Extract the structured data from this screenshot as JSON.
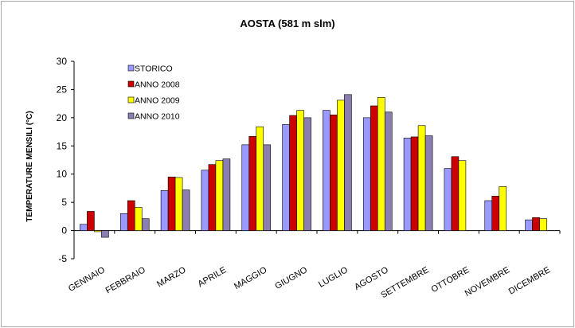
{
  "chart_data": {
    "type": "bar",
    "title": "AOSTA (581 m slm)",
    "ylabel": "TEMPERATURE MENSILI (°C)",
    "xlabel": "",
    "ylim": [
      -5,
      30
    ],
    "yticks": [
      -5,
      0,
      5,
      10,
      15,
      20,
      25,
      30
    ],
    "grid": false,
    "legend_position": "top-left",
    "categories": [
      "GENNAIO",
      "FEBBRAIO",
      "MARZO",
      "APRILE",
      "MAGGIO",
      "GIUGNO",
      "LUGLIO",
      "AGOSTO",
      "SETTEMBRE",
      "OTTOBRE",
      "NOVEMBRE",
      "DICEMBRE"
    ],
    "series": [
      {
        "name": "STORICO",
        "color": "#9999ff",
        "values": [
          1.1,
          3.0,
          7.1,
          10.7,
          15.2,
          18.8,
          21.3,
          20.0,
          16.4,
          11.0,
          5.3,
          1.9
        ]
      },
      {
        "name": "ANNO 2008",
        "color": "#cc0000",
        "values": [
          3.4,
          5.3,
          9.5,
          11.7,
          16.7,
          20.4,
          20.5,
          22.1,
          16.6,
          13.1,
          6.1,
          2.3
        ]
      },
      {
        "name": "ANNO 2009",
        "color": "#ffff00",
        "values": [
          -0.2,
          4.1,
          9.4,
          12.4,
          18.4,
          21.3,
          23.1,
          23.6,
          18.6,
          12.4,
          7.8,
          2.1
        ]
      },
      {
        "name": "ANNO 2010",
        "color": "#8b7eb0",
        "values": [
          -1.2,
          2.1,
          7.2,
          12.7,
          15.2,
          20.0,
          24.1,
          21.0,
          16.8,
          null,
          null,
          null
        ]
      }
    ]
  }
}
